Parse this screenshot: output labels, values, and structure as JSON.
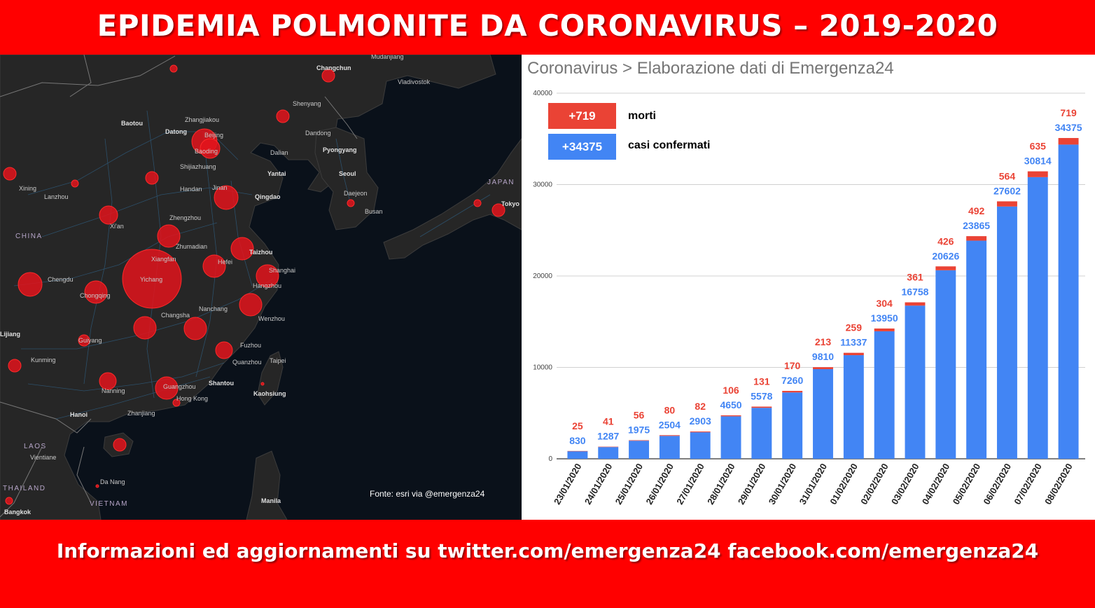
{
  "header": {
    "title": "EPIDEMIA POLMONITE DA CORONAVIRUS – 2019-2020"
  },
  "footer": {
    "text": "Informazioni ed aggiornamenti su twitter.com/emergenza24  facebook.com/emergenza24"
  },
  "map": {
    "source": "Fonte: esri via @emergenza24",
    "country_labels": [
      "CHINA",
      "JAPAN",
      "LAOS",
      "THAILAND",
      "VIETNAM"
    ],
    "cities": [
      "Mudanjiang",
      "Changchun",
      "Vladivostok",
      "Shenyang",
      "Dandong",
      "Baotou",
      "Zhangjiakou",
      "Datong",
      "Beijing",
      "Baoding",
      "Dalian",
      "Pyongyang",
      "Shijiazhuang",
      "Yantai",
      "Seoul",
      "Xining",
      "Lanzhou",
      "Handan",
      "Jinan",
      "Qingdao",
      "Daejeon",
      "Busan",
      "Tokyo",
      "Xi'an",
      "Zhengzhou",
      "Zhumadian",
      "Taizhou",
      "Xiangfan",
      "Hefei",
      "Shanghai",
      "Chengdu",
      "Yichang",
      "Hangzhou",
      "Chongqing",
      "Nanchang",
      "Wenzhou",
      "Changsha",
      "Lijiang",
      "Guiyang",
      "Fuzhou",
      "Taipei",
      "Kunming",
      "Quanzhou",
      "Nanning",
      "Guangzhou",
      "Shantou",
      "Kaohsiung",
      "Hong Kong",
      "Hanoi",
      "Zhanjiang",
      "Vientiane",
      "Da Nang",
      "Manila",
      "Bangkok"
    ]
  },
  "chart": {
    "heading": "Coronavirus > Elaborazione dati di Emergenza24",
    "legend": {
      "deaths_box": "+719",
      "deaths_label": "morti",
      "cases_box": "+34375",
      "cases_label": "casi confermati"
    }
  },
  "colors": {
    "banner": "#ff0000",
    "cases": "#4285f4",
    "deaths": "#ea4335",
    "map_bg": "#0a111a",
    "bubble": "#e3141c"
  },
  "chart_data": {
    "type": "bar",
    "stacked": true,
    "categories": [
      "23/01/2020",
      "24/01/2020",
      "25/01/2020",
      "26/01/2020",
      "27/01/2020",
      "28/01/2020",
      "29/01/2020",
      "30/01/2020",
      "31/01/2020",
      "01/02/2020",
      "02/02/2020",
      "03/02/2020",
      "04/02/2020",
      "05/02/2020",
      "06/02/2020",
      "07/02/2020",
      "08/02/2020"
    ],
    "series": [
      {
        "name": "casi confermati",
        "color": "#4285f4",
        "values": [
          830,
          1287,
          1975,
          2504,
          2903,
          4650,
          5578,
          7260,
          9810,
          11337,
          13950,
          16758,
          20626,
          23865,
          27602,
          30814,
          34375
        ]
      },
      {
        "name": "morti",
        "color": "#ea4335",
        "values": [
          25,
          41,
          56,
          80,
          82,
          106,
          131,
          170,
          213,
          259,
          304,
          361,
          426,
          492,
          564,
          635,
          719
        ]
      }
    ],
    "yticks": [
      0,
      10000,
      20000,
      30000,
      40000
    ],
    "ylim": [
      0,
      40000
    ],
    "grid": true,
    "legend": "top-left"
  }
}
